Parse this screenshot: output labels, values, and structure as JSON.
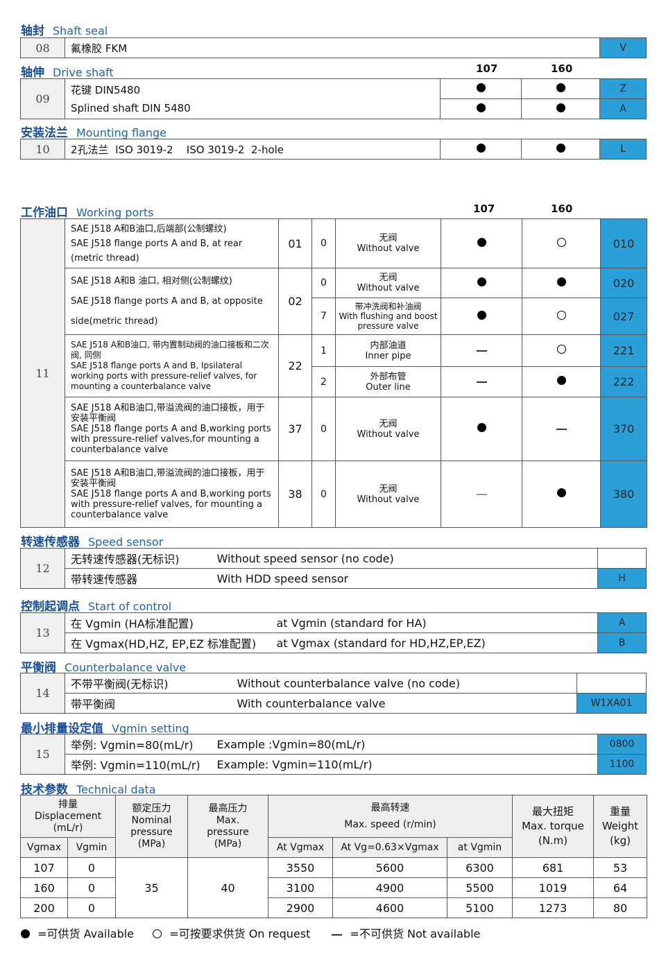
{
  "sections": {
    "shaft_seal": {
      "cn": "轴封",
      "en": "Shaft seal",
      "no": "08",
      "desc": "氟橡胶  FKM",
      "code": "V"
    },
    "drive_shaft": {
      "cn": "轴伸",
      "en": "Drive shaft",
      "col1": "107",
      "col2": "160",
      "no": "09",
      "desc1": "花键  DIN5480",
      "desc2": "Splined shaft DIN 5480",
      "rows": [
        {
          "a107": "available",
          "a160": "available",
          "code": "Z"
        },
        {
          "a107": "available",
          "a160": "available",
          "code": "A"
        }
      ]
    },
    "mounting_flange": {
      "cn": "安装法兰",
      "en": "Mounting flange",
      "no": "10",
      "desc": "2孔法兰  ISO 3019-2    ISO 3019-2  2-hole",
      "a107": "available",
      "a160": "available",
      "code": "L"
    },
    "working_ports": {
      "cn": "工作油口",
      "en": "Working ports",
      "col1": "107",
      "col2": "160",
      "no": "11",
      "groups": [
        {
          "desc": "SAE J518  A和B油口,后端部(公制螺纹)\nSAE J518 flange ports A and B, at rear (metric thread)",
          "code": "01"
        },
        {
          "desc_cn": "SAE J518  A和B 油口, 相对侧(公制螺纹)",
          "desc_en": "SAE J518 flange ports A and B, at opposite side(metric thread)",
          "code": "02"
        },
        {
          "desc_cn": "SAE J518  A和B油口, 带内置制动阀的油口接板和二次阀, 同侧",
          "desc_en": "SAE J518 flange ports A and B, Ipsilateral working ports with pressure-relief valves, for mounting a counterbalance valve",
          "code": "22"
        },
        {
          "desc_cn": "SAE J518  A和B油口,带溢流阀的油口接板，用于安装平衡阀",
          "desc_en": "SAE J518 flange ports A and B,working ports with pressure-relief valves,for mounting a counterbalance valve",
          "code": "37"
        },
        {
          "desc_cn": "SAE  J518  A和B油口,带溢流阀的油口接板，用于安装平衡阀",
          "desc_en": "SAE J518 flange ports A and B,working ports with pressure-relief valves, for mounting a counterbalance valve",
          "code": "38"
        }
      ],
      "rows": [
        {
          "sub": "0",
          "valve_cn": "无阀",
          "valve_en": "Without valve",
          "a107": "available",
          "a160": "on-request",
          "code": "010"
        },
        {
          "sub": "0",
          "valve_cn": "无阀",
          "valve_en": "Without valve",
          "a107": "available",
          "a160": "available",
          "code": "020"
        },
        {
          "sub": "7",
          "valve_cn": "带冲洗阀和补油阀",
          "valve_en": "With flushing and boost pressure valve",
          "a107": "available",
          "a160": "on-request",
          "code": "027"
        },
        {
          "sub": "1",
          "valve_cn": "内部油道",
          "valve_en": "Inner pipe",
          "a107": "not-available",
          "a160": "on-request",
          "code": "221"
        },
        {
          "sub": "2",
          "valve_cn": "外部布管",
          "valve_en": "Outer line",
          "a107": "not-available",
          "a160": "available",
          "code": "222"
        },
        {
          "sub": "0",
          "valve_cn": "无阀",
          "valve_en": "Without valve",
          "a107": "available",
          "a160": "not-available",
          "code": "370"
        },
        {
          "sub": "0",
          "valve_cn": "无阀",
          "valve_en": "Without valve",
          "a107": "not-available",
          "a160": "available",
          "code": "380"
        }
      ]
    },
    "speed_sensor": {
      "cn": "转速传感器",
      "en": "Speed sensor",
      "no": "12",
      "rows": [
        {
          "cn": "无转速传感器(无标识)",
          "en": "Without speed sensor (no code)",
          "code": ""
        },
        {
          "cn": "带转速传感器",
          "en": "With HDD speed sensor",
          "code": "H"
        }
      ]
    },
    "start_of_control": {
      "cn": "控制起调点",
      "en": "Start of control",
      "no": "13",
      "rows": [
        {
          "cn": "在 Vgmin (HA标准配置)",
          "en": "at Vgmin (standard for HA)",
          "code": "A"
        },
        {
          "cn": "在 Vgmax(HD,HZ, EP,EZ 标准配置)",
          "en": "at Vgmax (standard for HD,HZ,EP,EZ)",
          "code": "B"
        }
      ]
    },
    "counterbalance": {
      "cn": "平衡阀",
      "en": "Counterbalance valve",
      "no": "14",
      "rows": [
        {
          "cn": "不带平衡阀(无标识)",
          "en": "Without counterbalance valve (no code)",
          "code": ""
        },
        {
          "cn": "带平衡阀",
          "en": "With counterbalance valve",
          "code": "W1XA01"
        }
      ]
    },
    "vgmin": {
      "cn": "最小排量设定值",
      "en": "Vgmin setting",
      "no": "15",
      "rows": [
        {
          "cn": "举例: Vgmin=80(mL/r)",
          "en": "Example :Vgmin=80(mL/r)",
          "code": "0800"
        },
        {
          "cn": "举例: Vgmin=110(mL/r)",
          "en": "Example: Vgmin=110(mL/r)",
          "code": "1100"
        }
      ]
    },
    "technical": {
      "cn": "技术参数",
      "en": "Technical data",
      "headers": {
        "disp": "排量\nDisplacement\n(mL/r)",
        "vgmax": "Vgmax",
        "vgmin": "Vgmin",
        "nom": "额定压力\nNominal\npressure\n(MPa)",
        "max": "最高压力\nMax.\npressure\n(MPa)",
        "speed": "最高转速\nMax. speed (r/min)",
        "s1": "At Vgmax",
        "s2": "At Vg=0.63×Vgmax",
        "s3": "at Vgmin",
        "torque": "最大扭矩\nMax. torque\n(N.m)",
        "weight": "重量\nWeight\n(kg)"
      },
      "nominal": "35",
      "maxp": "40",
      "rows": [
        [
          "107",
          "0",
          "3550",
          "5600",
          "6300",
          "681",
          "53"
        ],
        [
          "160",
          "0",
          "3100",
          "4900",
          "5500",
          "1019",
          "64"
        ],
        [
          "200",
          "0",
          "2900",
          "4600",
          "5100",
          "1273",
          "80"
        ]
      ]
    }
  },
  "legend": {
    "available": "=可供货  Available",
    "on_request": "=可按要求供货  On request",
    "not_available": "=不可供货   Not available"
  },
  "colors": {
    "code_blue": "#2a9fd8",
    "title_blue": "#1f63ad"
  }
}
